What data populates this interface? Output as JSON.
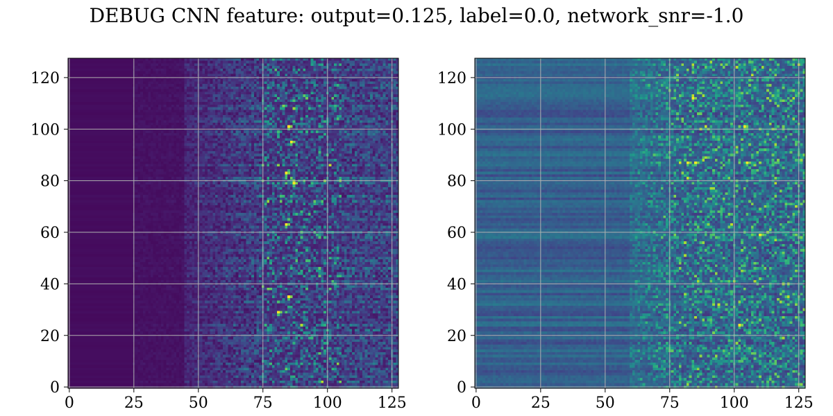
{
  "figure": {
    "title": "DEBUG CNN feature: output=0.125, label=0.0, network_snr=-1.0"
  },
  "colors": {
    "background": "#ffffff",
    "grid": "#b0b0b0",
    "axis": "#000000",
    "colormap": [
      "#440154",
      "#482878",
      "#3e4989",
      "#31688e",
      "#26828e",
      "#1f9e89",
      "#35b779",
      "#6ece58",
      "#b5de2b",
      "#fde725"
    ]
  },
  "chart_data": [
    {
      "type": "heatmap",
      "colormap": "viridis",
      "rows": 128,
      "cols": 128,
      "xlim": [
        -0.5,
        127.5
      ],
      "ylim": [
        127.5,
        -0.5
      ],
      "xticks": [
        0,
        25,
        50,
        75,
        100,
        125
      ],
      "yticks": [
        0,
        20,
        40,
        60,
        80,
        100,
        120
      ],
      "grid": true,
      "pattern": {
        "dark_until_col": 25,
        "transition_cols": [
          45,
          75
        ],
        "bright_cols": [
          75,
          105
        ],
        "hotspots": [
          [
            85,
            26
          ],
          [
            86,
            32
          ],
          [
            87,
            48
          ],
          [
            84,
            64
          ],
          [
            85,
            92
          ],
          [
            81,
            98
          ],
          [
            84,
            44
          ]
        ]
      }
    },
    {
      "type": "heatmap",
      "colormap": "viridis",
      "rows": 128,
      "cols": 128,
      "xlim": [
        -0.5,
        127.5
      ],
      "ylim": [
        127.5,
        -0.5
      ],
      "xticks": [
        0,
        25,
        50,
        75,
        100,
        125
      ],
      "yticks": [
        0,
        20,
        40,
        60,
        80,
        100,
        120
      ],
      "grid": true,
      "pattern": {
        "dark_until_col": 0,
        "transition_cols": [
          60,
          80
        ],
        "bright_cols": [
          75,
          127
        ],
        "hotspots": [
          [
            82,
            40
          ],
          [
            85,
            40
          ],
          [
            105,
            40
          ],
          [
            84,
            15
          ],
          [
            104,
            26
          ],
          [
            102,
            103
          ],
          [
            110,
            68
          ]
        ]
      }
    }
  ]
}
